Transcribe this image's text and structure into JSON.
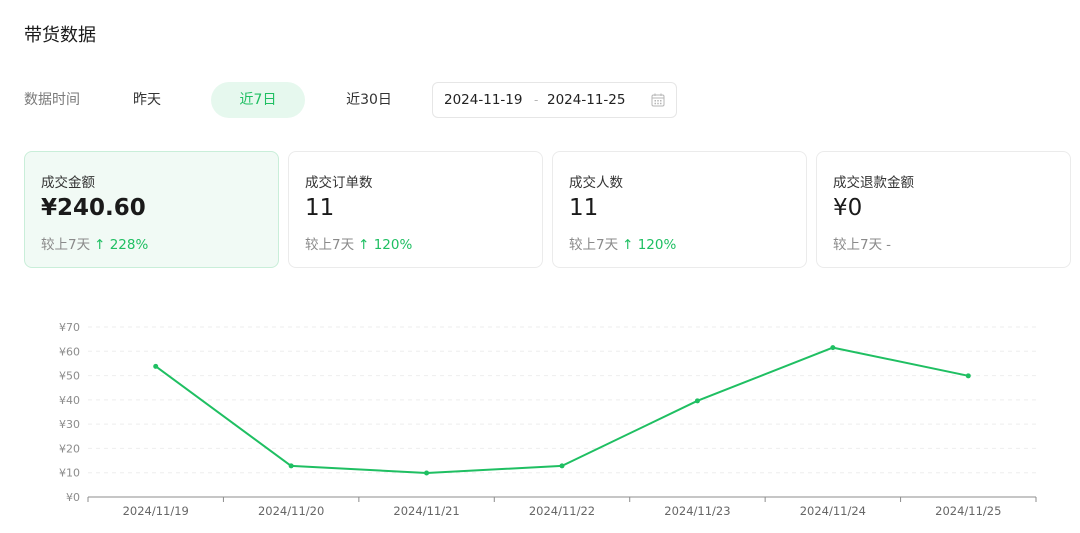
{
  "page": {
    "title": "带货数据"
  },
  "filter": {
    "label": "数据时间",
    "options": [
      {
        "label": "昨天",
        "selected": false
      },
      {
        "label": "近7日",
        "selected": true
      },
      {
        "label": "近30日",
        "selected": false
      }
    ],
    "date_start": "2024-11-19",
    "date_separator": "-",
    "date_end": "2024-11-25"
  },
  "cards": [
    {
      "label": "成交金额",
      "value": "¥240.60",
      "compare_label": "较上7天",
      "change": "↑ 228%",
      "active": true
    },
    {
      "label": "成交订单数",
      "value": "11",
      "compare_label": "较上7天",
      "change": "↑ 120%",
      "active": false
    },
    {
      "label": "成交人数",
      "value": "11",
      "compare_label": "较上7天",
      "change": "↑ 120%",
      "active": false
    },
    {
      "label": "成交退款金额",
      "value": "¥0",
      "compare_label": "较上7天",
      "change": "-",
      "active": false
    }
  ],
  "colors": {
    "accent": "#1fbf62",
    "accent_bg": "#e6f8ee"
  },
  "chart_data": {
    "type": "line",
    "categories": [
      "2024/11/19",
      "2024/11/20",
      "2024/11/21",
      "2024/11/22",
      "2024/11/23",
      "2024/11/24",
      "2024/11/25"
    ],
    "series": [
      {
        "values": [
          53.8,
          12.8,
          9.9,
          12.8,
          39.6,
          61.5,
          49.9
        ]
      }
    ],
    "y_ticks": [
      "¥0",
      "¥10",
      "¥20",
      "¥30",
      "¥40",
      "¥50",
      "¥60",
      "¥70"
    ],
    "ylim": [
      0,
      70
    ],
    "grid": true,
    "color": "#1fbf62"
  }
}
